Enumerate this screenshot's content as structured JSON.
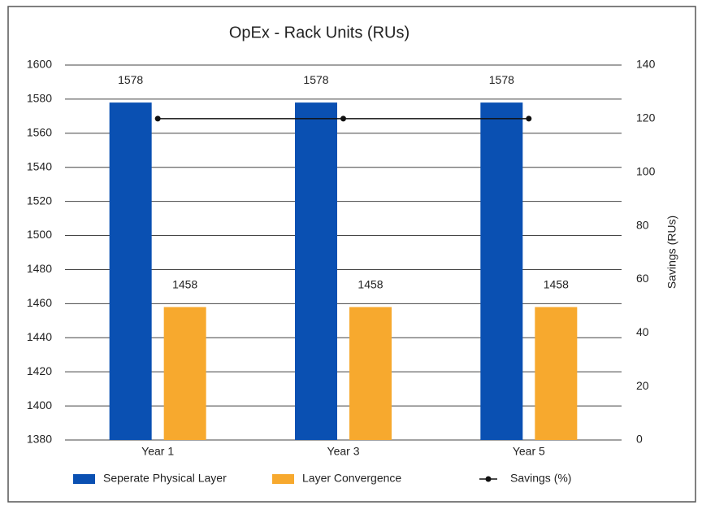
{
  "chart_data": {
    "type": "bar",
    "title": "OpEx - Rack Units (RUs)",
    "categories": [
      "Year 1",
      "Year 3",
      "Year 5"
    ],
    "series": [
      {
        "name": "Seperate Physical Layer",
        "type": "bar",
        "color": "#0a50b2",
        "values": [
          1578,
          1578,
          1578
        ]
      },
      {
        "name": "Layer Convergence",
        "type": "bar",
        "color": "#f7a92e",
        "values": [
          1458,
          1458,
          1458
        ]
      },
      {
        "name": "Savings (%)",
        "type": "line",
        "axis": "y2",
        "color": "#111111",
        "values": [
          120,
          120,
          120
        ]
      }
    ],
    "ylim": [
      1380,
      1600
    ],
    "yticks": [
      1380,
      1400,
      1420,
      1440,
      1460,
      1480,
      1500,
      1520,
      1540,
      1560,
      1580,
      1600
    ],
    "y2lim": [
      0,
      140
    ],
    "y2ticks": [
      0,
      20,
      40,
      60,
      80,
      100,
      120,
      140
    ],
    "y2label": "Savings (RUs)",
    "grid": true,
    "legend": "bottom"
  }
}
